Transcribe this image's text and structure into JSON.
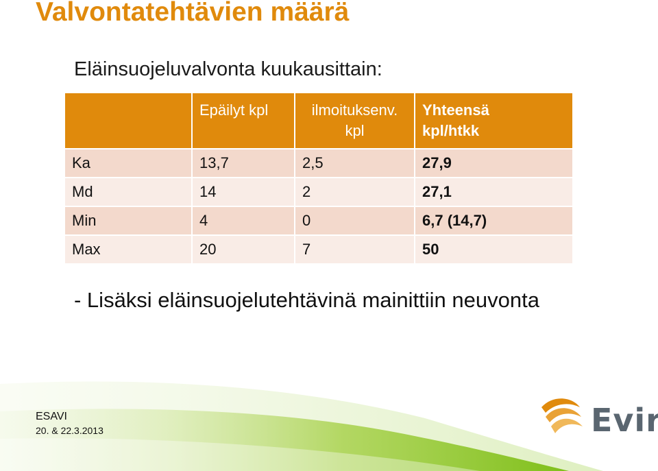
{
  "title": "Valvontatehtävien määrä",
  "subtitle": "Eläinsuojeluvalvonta kuukausittain:",
  "table": {
    "headers": [
      "",
      "Epäilyt kpl",
      "ilmoituksenv.",
      "kpl",
      "Yhteensä",
      "kpl/htkk"
    ],
    "rows": [
      {
        "label": "Ka",
        "epailyt": "13,7",
        "ilmoitukset": "2,5",
        "yhteensa": "27,9"
      },
      {
        "label": "Md",
        "epailyt": "14",
        "ilmoitukset": "2",
        "yhteensa": "27,1"
      },
      {
        "label": "Min",
        "epailyt": "4",
        "ilmoitukset": "0",
        "yhteensa": "6,7 (14,7)"
      },
      {
        "label": "Max",
        "epailyt": "20",
        "ilmoitukset": "7",
        "yhteensa": "50"
      }
    ]
  },
  "note": "- Lisäksi eläinsuojelutehtävinä mainittiin neuvonta",
  "footer": {
    "org": "ESAVI",
    "date": "20. & 22.3.2013"
  },
  "logo": {
    "text": "Evira"
  },
  "colors": {
    "accent": "#e08a0c",
    "row_dark": "#f3d9cc",
    "row_light": "#f9ece6",
    "wave_green": "#8fc31f"
  }
}
